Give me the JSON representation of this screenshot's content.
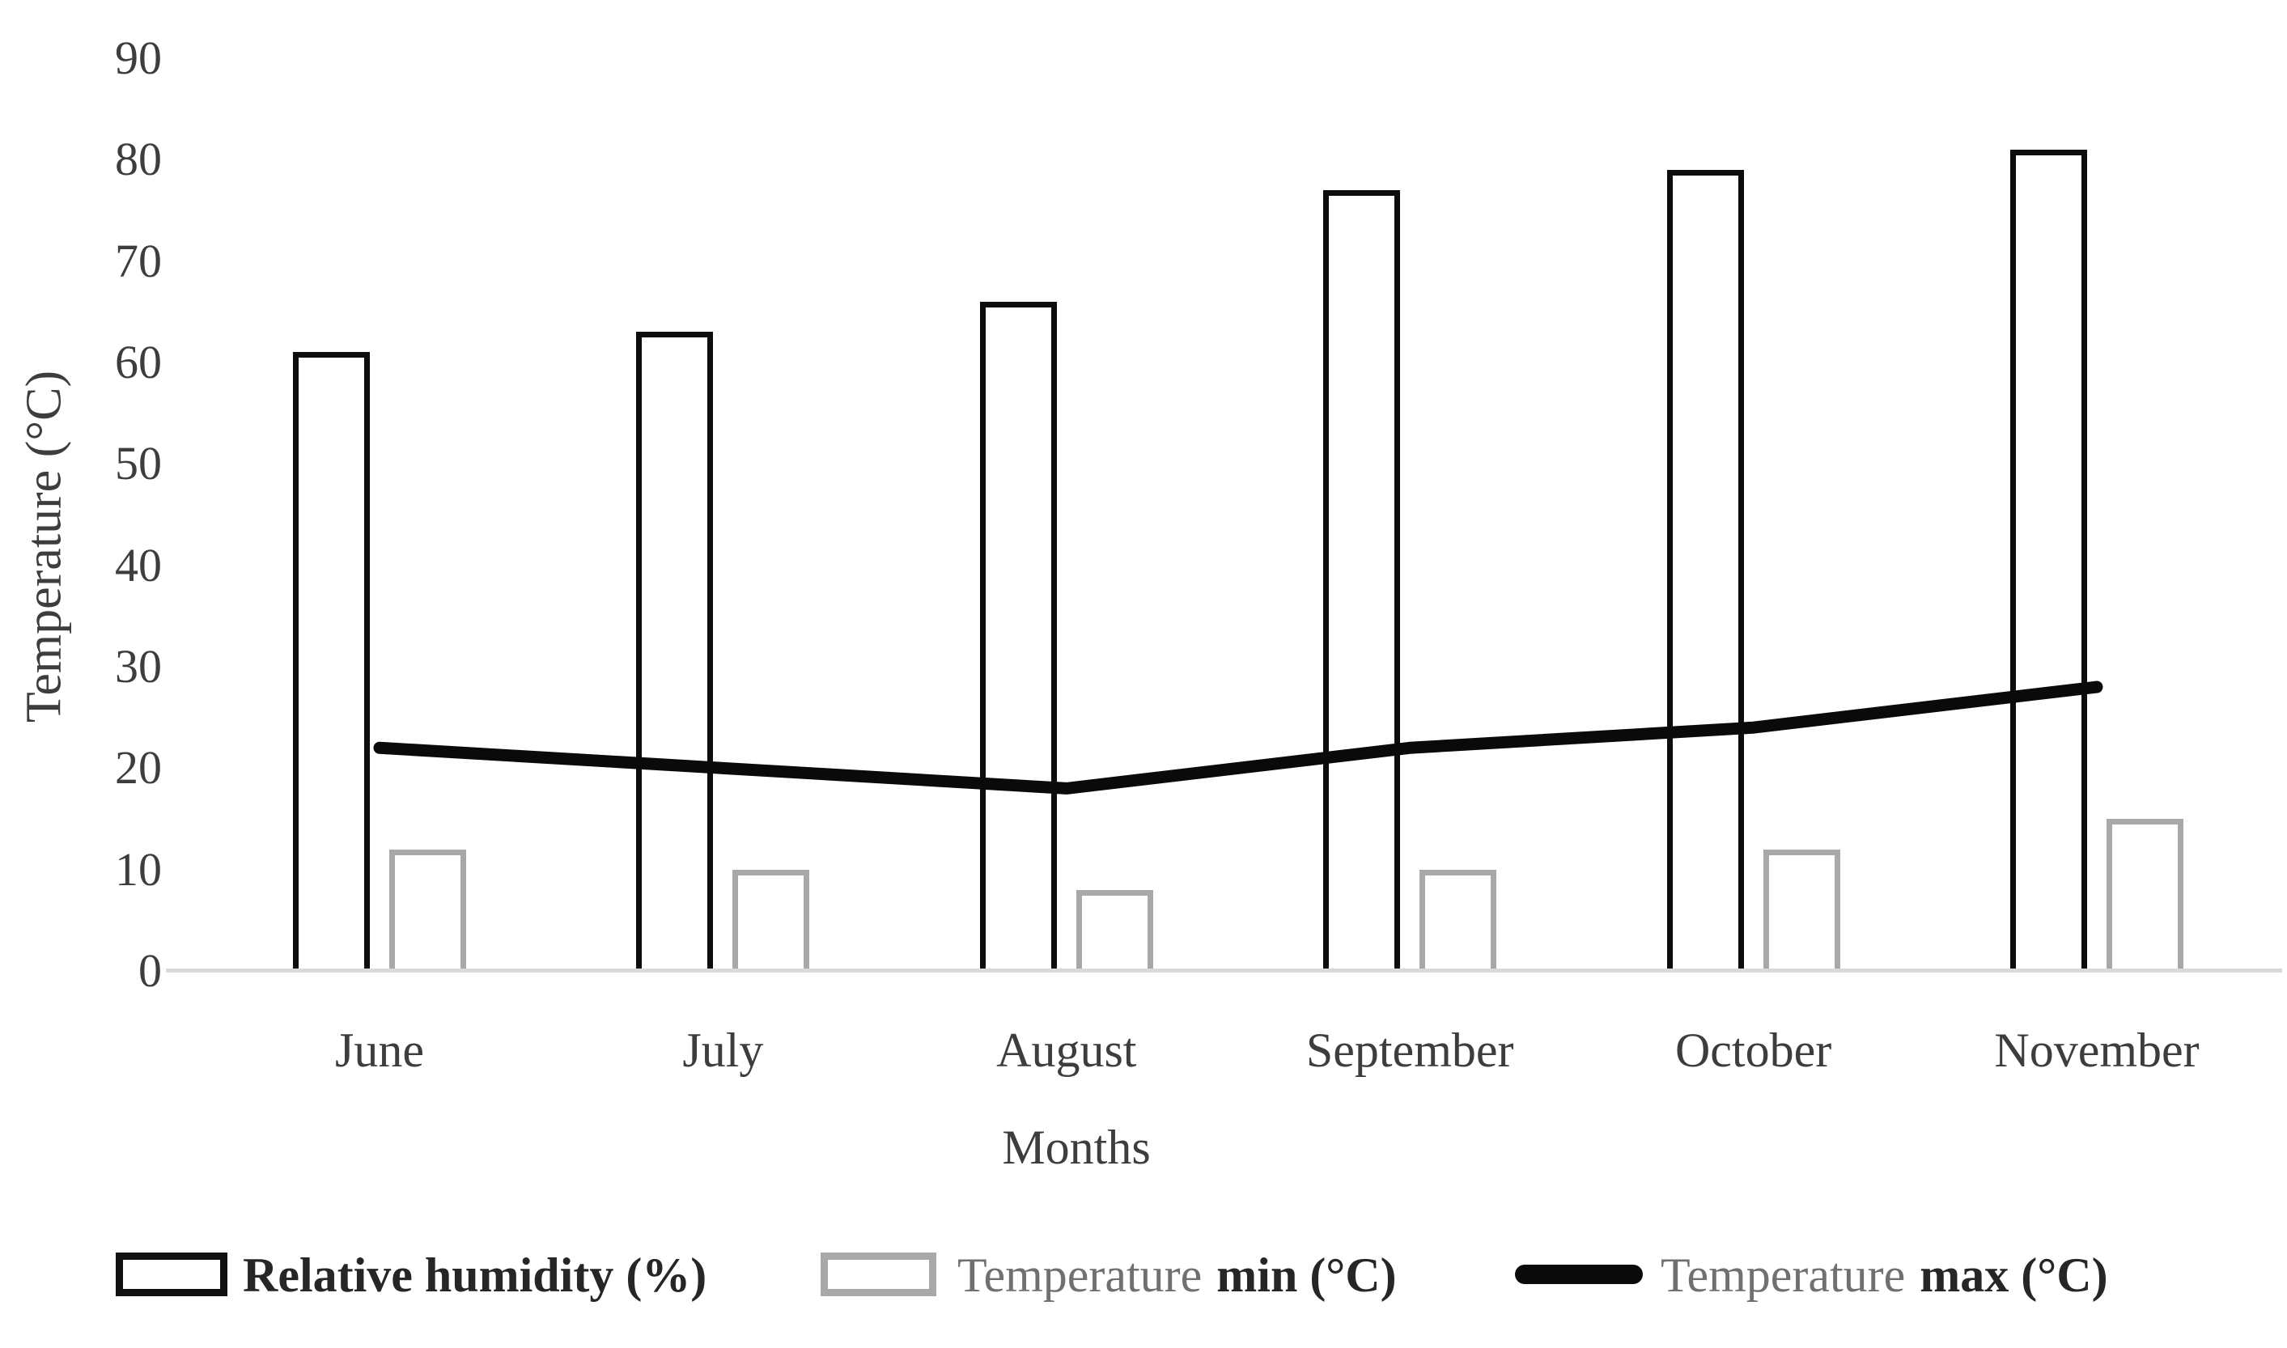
{
  "axes": {
    "y_title": "Temperature (°C)",
    "x_title": "Months",
    "y_ticks": [
      90,
      80,
      70,
      60,
      50,
      40,
      30,
      20,
      10,
      0
    ]
  },
  "chart_data": {
    "type": "bar",
    "subtype": "grouped-bars-with-line-overlay",
    "title": "",
    "xlabel": "Months",
    "ylabel": "Temperature (°C)",
    "ylim": [
      0,
      90
    ],
    "ytick_step": 10,
    "grid": false,
    "legend_position": "bottom",
    "categories": [
      "June",
      "July",
      "August",
      "September",
      "October",
      "November"
    ],
    "series": [
      {
        "name": "Relative humidity (%)",
        "type": "bar",
        "style": "white-fill-black-outline",
        "values": [
          61,
          63,
          66,
          77,
          79,
          81
        ]
      },
      {
        "name": "Temperature min (°C)",
        "type": "bar",
        "style": "white-fill-gray-outline",
        "values": [
          12,
          10,
          8,
          10,
          12,
          15
        ]
      },
      {
        "name": "Temperature max (°C)",
        "type": "line",
        "style": "thick-black-line",
        "values": [
          22,
          20,
          18,
          22,
          24,
          28
        ]
      }
    ]
  },
  "legend": {
    "items": [
      {
        "label": "Relative humidity (%)",
        "swatch": "bar-black-outline"
      },
      {
        "label_light": "Temperature",
        "label_dark": "min (°C)",
        "swatch": "bar-gray-outline"
      },
      {
        "label_light": "Temperature",
        "label_dark": "max (°C)",
        "swatch": "thick-black-line"
      }
    ]
  },
  "colors": {
    "humidity_outline": "#0d0d0d",
    "tmin_outline": "#a8a8a8",
    "tmax_line": "#0a0a0a",
    "axis_line": "#d9d9d9",
    "tick_text": "#3d3d3d",
    "legend_dark_text": "#262626",
    "legend_light_text": "#707070"
  }
}
